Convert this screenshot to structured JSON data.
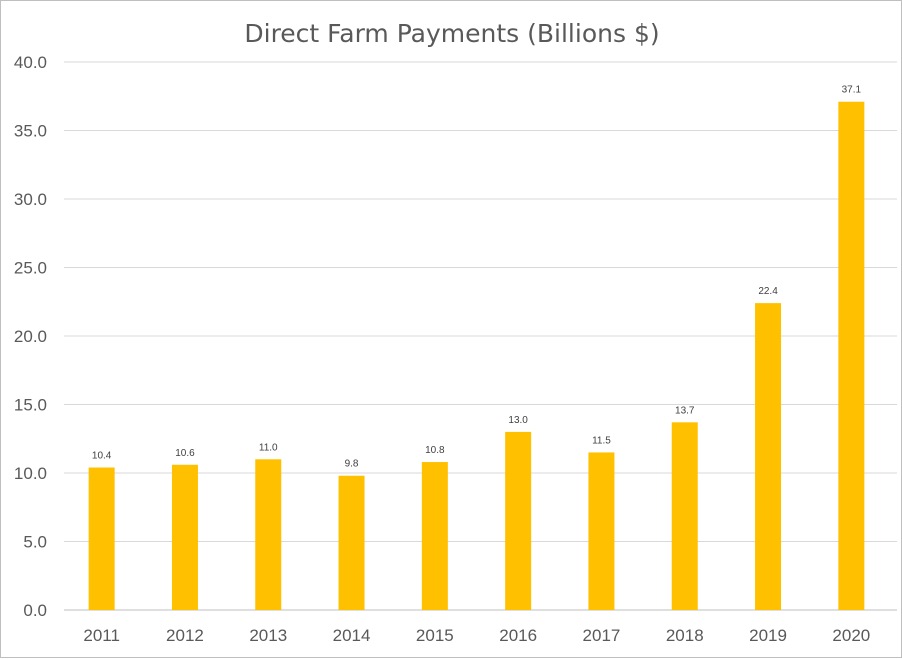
{
  "chart_data": {
    "type": "bar",
    "title": "Direct Farm Payments (Billions $)",
    "categories": [
      "2011",
      "2012",
      "2013",
      "2014",
      "2015",
      "2016",
      "2017",
      "2018",
      "2019",
      "2020"
    ],
    "values": [
      10.4,
      10.6,
      11.0,
      9.8,
      10.8,
      13.0,
      11.5,
      13.7,
      22.4,
      37.1
    ],
    "value_labels": [
      "10.4",
      "10.6",
      "11.0",
      "9.8",
      "10.8",
      "13.0",
      "11.5",
      "13.7",
      "22.4",
      "37.1"
    ],
    "y_ticks": [
      "0.0",
      "5.0",
      "10.0",
      "15.0",
      "20.0",
      "25.0",
      "30.0",
      "35.0",
      "40.0"
    ],
    "ylim": [
      0,
      40
    ],
    "grid": true,
    "legend": "none",
    "bar_color": "#ffc000",
    "gridline_color": "#d9d9d9",
    "text_color": "#595959"
  }
}
